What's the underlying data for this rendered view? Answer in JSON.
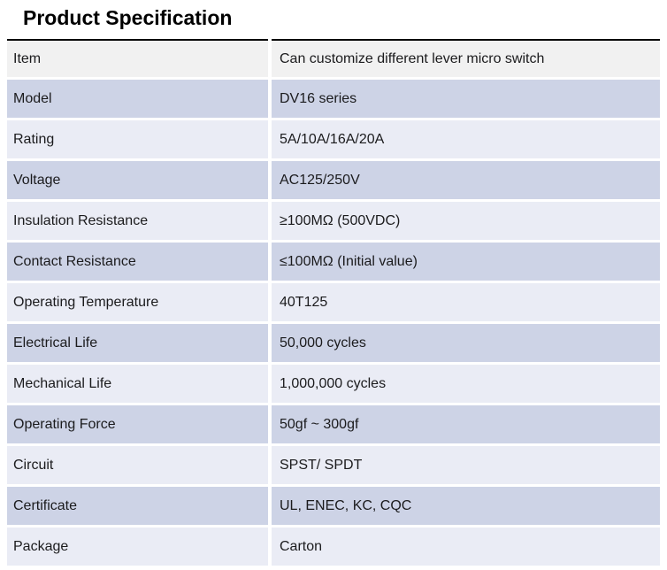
{
  "page": {
    "title": "Product Specification"
  },
  "table": {
    "colors": {
      "row_gray": "#f1f1f1",
      "row_lavender": "#cdd3e6",
      "row_light": "#eaecf5",
      "top_border": "#000000",
      "text": "#1b1b1d"
    },
    "rows": [
      {
        "label": "Item",
        "value": "Can customize different lever micro switch"
      },
      {
        "label": "Model",
        "value": "DV16 series"
      },
      {
        "label": "Rating",
        "value": "5A/10A/16A/20A"
      },
      {
        "label": "Voltage",
        "value": "AC125/250V"
      },
      {
        "label": "Insulation Resistance",
        "value": "≥100MΩ (500VDC)"
      },
      {
        "label": "Contact Resistance",
        "value": "≤100MΩ (Initial value)"
      },
      {
        "label": "Operating Temperature",
        "value": "40T125"
      },
      {
        "label": "Electrical Life",
        "value": "50,000 cycles"
      },
      {
        "label": "Mechanical Life",
        "value": "1,000,000 cycles"
      },
      {
        "label": "Operating Force",
        "value": "50gf ~ 300gf"
      },
      {
        "label": "Circuit",
        "value": "SPST/ SPDT"
      },
      {
        "label": "Certificate",
        "value": "UL, ENEC, KC, CQC"
      },
      {
        "label": "Package",
        "value": "Carton"
      }
    ]
  }
}
